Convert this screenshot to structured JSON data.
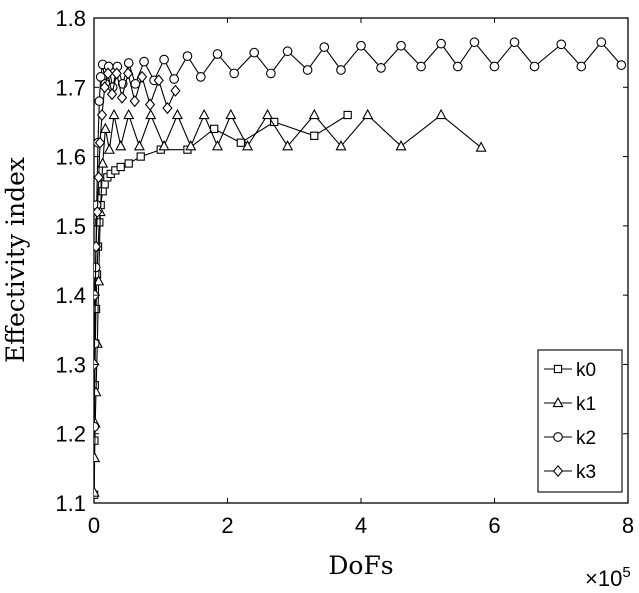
{
  "chart_data": {
    "type": "line",
    "title": "",
    "xlabel": "DoFs",
    "ylabel": "Effectivity index",
    "x_multiplier": {
      "base": "×10",
      "exponent": "5"
    },
    "xlim": [
      0,
      800000
    ],
    "ylim": [
      1.1,
      1.8
    ],
    "xticks": [
      0,
      200000,
      400000,
      600000,
      800000
    ],
    "xtick_labels": [
      "0",
      "2",
      "4",
      "6",
      "8"
    ],
    "yticks": [
      1.1,
      1.2,
      1.3,
      1.4,
      1.5,
      1.6,
      1.7,
      1.8
    ],
    "ytick_labels": [
      "1.1",
      "1.2",
      "1.3",
      "1.4",
      "1.5",
      "1.6",
      "1.7",
      "1.8"
    ],
    "legend_position": "bottom-right",
    "grid": false,
    "series": [
      {
        "name": "k0",
        "marker": "square",
        "x": [
          200,
          600,
          1200,
          2000,
          3000,
          4500,
          6000,
          8000,
          10000,
          13000,
          16000,
          20000,
          25000,
          32000,
          40000,
          52000,
          70000,
          100000,
          140000,
          180000,
          220000,
          270000,
          330000,
          380000
        ],
        "y": [
          1.112,
          1.19,
          1.27,
          1.33,
          1.38,
          1.43,
          1.47,
          1.505,
          1.53,
          1.55,
          1.56,
          1.57,
          1.575,
          1.58,
          1.585,
          1.59,
          1.6,
          1.61,
          1.61,
          1.64,
          1.62,
          1.65,
          1.63,
          1.66
        ]
      },
      {
        "name": "k1",
        "marker": "triangle",
        "x": [
          300,
          900,
          1800,
          3000,
          5000,
          7000,
          9500,
          13000,
          17000,
          23000,
          30000,
          40000,
          52000,
          68000,
          85000,
          105000,
          125000,
          145000,
          165000,
          185000,
          205000,
          230000,
          260000,
          290000,
          330000,
          370000,
          410000,
          460000,
          520000,
          580000
        ],
        "y": [
          1.115,
          1.165,
          1.215,
          1.26,
          1.33,
          1.42,
          1.52,
          1.59,
          1.64,
          1.61,
          1.66,
          1.615,
          1.66,
          1.615,
          1.66,
          1.615,
          1.66,
          1.615,
          1.66,
          1.615,
          1.66,
          1.615,
          1.66,
          1.615,
          1.66,
          1.615,
          1.66,
          1.615,
          1.66,
          1.613
        ]
      },
      {
        "name": "k2",
        "marker": "circle",
        "x": [
          400,
          1200,
          2500,
          4000,
          6000,
          8000,
          10000,
          13000,
          17000,
          22000,
          28000,
          35000,
          43000,
          52000,
          62000,
          75000,
          90000,
          105000,
          120000,
          140000,
          160000,
          185000,
          210000,
          240000,
          265000,
          290000,
          320000,
          345000,
          370000,
          400000,
          430000,
          460000,
          490000,
          520000,
          545000,
          570000,
          600000,
          630000,
          660000,
          700000,
          730000,
          760000,
          790000
        ],
        "y": [
          1.21,
          1.33,
          1.44,
          1.53,
          1.62,
          1.68,
          1.715,
          1.733,
          1.705,
          1.73,
          1.7,
          1.73,
          1.705,
          1.735,
          1.705,
          1.737,
          1.71,
          1.74,
          1.712,
          1.745,
          1.715,
          1.748,
          1.72,
          1.75,
          1.72,
          1.752,
          1.725,
          1.758,
          1.725,
          1.76,
          1.728,
          1.76,
          1.73,
          1.763,
          1.73,
          1.765,
          1.73,
          1.765,
          1.73,
          1.762,
          1.73,
          1.765,
          1.732
        ]
      },
      {
        "name": "k3",
        "marker": "diamond",
        "x": [
          500,
          1500,
          3000,
          5000,
          7000,
          9000,
          12000,
          16000,
          21000,
          27000,
          34000,
          42000,
          51000,
          61000,
          72000,
          84000,
          97000,
          110000,
          122000
        ],
        "y": [
          1.3,
          1.4,
          1.47,
          1.52,
          1.57,
          1.62,
          1.66,
          1.7,
          1.72,
          1.69,
          1.72,
          1.685,
          1.72,
          1.68,
          1.715,
          1.675,
          1.71,
          1.67,
          1.695
        ]
      }
    ]
  }
}
